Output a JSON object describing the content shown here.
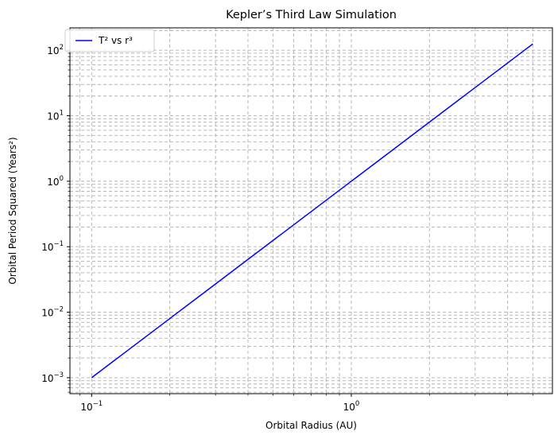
{
  "chart_data": {
    "type": "line",
    "title": "Kepler’s Third Law Simulation",
    "xlabel": "Orbital Radius (AU)",
    "ylabel": "Orbital Period Squared (Years²)",
    "xscale": "log",
    "yscale": "log",
    "xlim": [
      0.0825,
      5.95
    ],
    "ylim": [
      0.00057,
      220
    ],
    "x_major_ticks": [
      {
        "value": 0.1,
        "base": "10",
        "exp": "−1"
      },
      {
        "value": 1,
        "base": "10",
        "exp": "0"
      }
    ],
    "y_major_ticks": [
      {
        "value": 0.001,
        "base": "10",
        "exp": "−3"
      },
      {
        "value": 0.01,
        "base": "10",
        "exp": "−2"
      },
      {
        "value": 0.1,
        "base": "10",
        "exp": "−1"
      },
      {
        "value": 1,
        "base": "10",
        "exp": "0"
      },
      {
        "value": 10,
        "base": "10",
        "exp": "1"
      },
      {
        "value": 100,
        "base": "10",
        "exp": "2"
      }
    ],
    "grid": "both-major-minor-dashed",
    "legend": {
      "placement": "top-left",
      "label": "T² vs r³"
    },
    "series": [
      {
        "name": "T² vs r³",
        "color": "#0000ff",
        "relation": "y = x^3",
        "x": [
          0.1,
          0.2,
          0.5,
          1,
          2,
          3,
          4,
          5
        ],
        "y": [
          0.001,
          0.008,
          0.125,
          1,
          8,
          27,
          64,
          125
        ]
      }
    ]
  }
}
